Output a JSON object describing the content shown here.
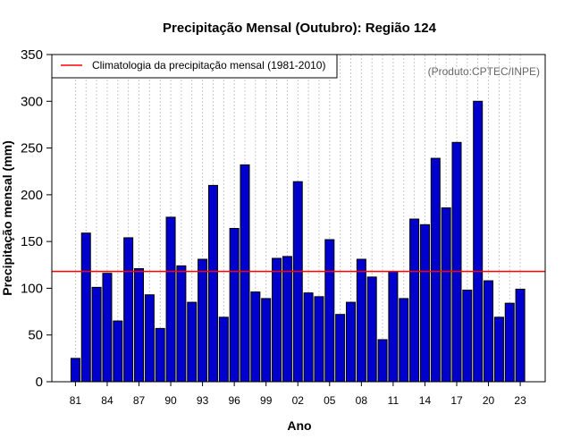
{
  "chart_data": {
    "type": "bar",
    "title": "Precipitação Mensal (Outubro): Região 124",
    "xlabel": "Ano",
    "ylabel": "Precipitação mensal (mm)",
    "ylim": [
      0,
      350
    ],
    "yticks": [
      0,
      50,
      100,
      150,
      200,
      250,
      300,
      350
    ],
    "x_tick_labels": [
      "81",
      "84",
      "87",
      "90",
      "93",
      "96",
      "99",
      "02",
      "05",
      "08",
      "11",
      "14",
      "17",
      "20",
      "23"
    ],
    "years": [
      1981,
      1982,
      1983,
      1984,
      1985,
      1986,
      1987,
      1988,
      1989,
      1990,
      1991,
      1992,
      1993,
      1994,
      1995,
      1996,
      1997,
      1998,
      1999,
      2000,
      2001,
      2002,
      2003,
      2004,
      2005,
      2006,
      2007,
      2008,
      2009,
      2010,
      2011,
      2012,
      2013,
      2014,
      2015,
      2016,
      2017,
      2018,
      2019,
      2020,
      2021,
      2022,
      2023
    ],
    "values": [
      25,
      159,
      101,
      116,
      65,
      154,
      121,
      93,
      57,
      176,
      124,
      85,
      131,
      210,
      69,
      164,
      232,
      96,
      89,
      132,
      134,
      214,
      95,
      91,
      152,
      72,
      85,
      131,
      112,
      45,
      118,
      89,
      174,
      168,
      239,
      186,
      256,
      98,
      300,
      108,
      69,
      84,
      99
    ],
    "bar_color": "#0000cc",
    "climatology": {
      "label": "Climatologia da precipitação mensal (1981-2010)",
      "value": 118,
      "color": "#ff0000"
    },
    "grid": true,
    "legend_position": "top-left",
    "credit": "(Produto:CPTEC/INPE)"
  }
}
